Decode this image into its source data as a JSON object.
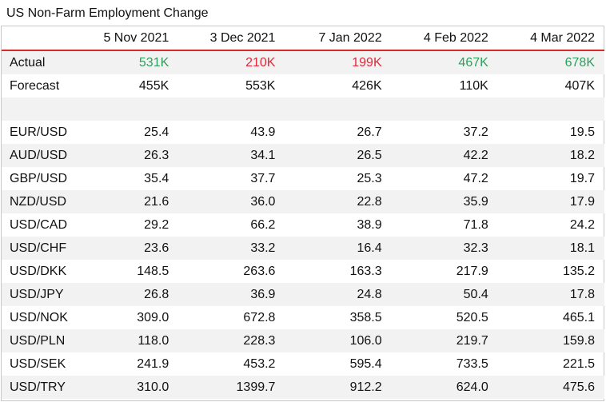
{
  "chart_data": {
    "type": "table",
    "title": "US Non-Farm Employment Change",
    "columns": [
      "5 Nov 2021",
      "3 Dec 2021",
      "7 Jan 2022",
      "4 Feb 2022",
      "4 Mar 2022"
    ],
    "actual": {
      "label": "Actual",
      "values": [
        "531K",
        "210K",
        "199K",
        "467K",
        "678K"
      ],
      "direction": [
        "pos",
        "neg",
        "neg",
        "pos",
        "pos"
      ]
    },
    "forecast": {
      "label": "Forecast",
      "values": [
        "455K",
        "553K",
        "426K",
        "110K",
        "407K"
      ]
    },
    "rows": [
      {
        "label": "EUR/USD",
        "values": [
          "25.4",
          "43.9",
          "26.7",
          "37.2",
          "19.5"
        ]
      },
      {
        "label": "AUD/USD",
        "values": [
          "26.3",
          "34.1",
          "26.5",
          "42.2",
          "18.2"
        ]
      },
      {
        "label": "GBP/USD",
        "values": [
          "35.4",
          "37.7",
          "25.3",
          "47.2",
          "19.7"
        ]
      },
      {
        "label": "NZD/USD",
        "values": [
          "21.6",
          "36.0",
          "22.8",
          "35.9",
          "17.9"
        ]
      },
      {
        "label": "USD/CAD",
        "values": [
          "29.2",
          "66.2",
          "38.9",
          "71.8",
          "24.2"
        ]
      },
      {
        "label": "USD/CHF",
        "values": [
          "23.6",
          "33.2",
          "16.4",
          "32.3",
          "18.1"
        ]
      },
      {
        "label": "USD/DKK",
        "values": [
          "148.5",
          "263.6",
          "163.3",
          "217.9",
          "135.2"
        ]
      },
      {
        "label": "USD/JPY",
        "values": [
          "26.8",
          "36.9",
          "24.8",
          "50.4",
          "17.8"
        ]
      },
      {
        "label": "USD/NOK",
        "values": [
          "309.0",
          "672.8",
          "358.5",
          "520.5",
          "465.1"
        ]
      },
      {
        "label": "USD/PLN",
        "values": [
          "118.0",
          "228.3",
          "106.0",
          "219.7",
          "159.8"
        ]
      },
      {
        "label": "USD/SEK",
        "values": [
          "241.9",
          "453.2",
          "595.4",
          "733.5",
          "221.5"
        ]
      },
      {
        "label": "USD/TRY",
        "values": [
          "310.0",
          "1399.7",
          "912.2",
          "624.0",
          "475.6"
        ]
      }
    ],
    "colors": {
      "positive": "#2e9e5b",
      "negative": "#e0293a",
      "header_rule": "#d62b2b",
      "row_shade": "#f2f2f2"
    }
  }
}
